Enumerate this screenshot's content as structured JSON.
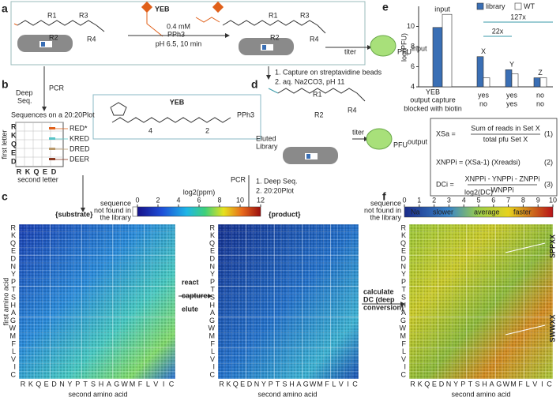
{
  "panel_labels": [
    "a",
    "b",
    "c",
    "d",
    "e",
    "f"
  ],
  "panel_a": {
    "r_groups": [
      "R1",
      "R2",
      "R3",
      "R4"
    ],
    "reagent": "YEB",
    "concentration": "0.4 mM",
    "conditions": "pH 6.5, 10 min",
    "ylide": "PPh3",
    "titer": "titer",
    "pfu": "PFU",
    "pfu_sup": "input"
  },
  "yeb_box": {
    "title": "YEB",
    "ylide": "PPh3",
    "n1": "4",
    "n2": "2"
  },
  "panel_b": {
    "steps": [
      "PCR",
      "Deep",
      "Seq."
    ],
    "plot_title": "Sequences on a 20:20Plot",
    "y_label": "first letter",
    "x_label": "second letter",
    "letters": [
      "R",
      "K",
      "Q",
      "E",
      "D"
    ],
    "examples": [
      {
        "text": "RED*",
        "color": "#e0601a"
      },
      {
        "text": "KRED",
        "color": "#58c4c8"
      },
      {
        "text": "DRED",
        "color": "#b8986a"
      },
      {
        "text": "DEER",
        "color": "#8a3a22"
      }
    ]
  },
  "panel_c": {
    "missing_note": [
      "sequence",
      "not found in",
      "the library"
    ],
    "colorbar_title": "log2(ppm)",
    "colorbar_ticks": [
      0,
      2,
      4,
      6,
      8,
      10,
      12
    ],
    "substrate": "{substrate}",
    "product": "{product}",
    "y_label": "first amino acid",
    "x_label": "second amino acid",
    "steps": [
      "react",
      "capture",
      "elute"
    ],
    "pcr": "PCR",
    "seq_steps": [
      "1. Deep Seq.",
      "2. 20:20Plot"
    ],
    "calc": [
      "calculate",
      "DC (deep",
      "conversion)"
    ]
  },
  "amino_acids": [
    "R",
    "K",
    "Q",
    "E",
    "D",
    "N",
    "Y",
    "P",
    "T",
    "S",
    "H",
    "A",
    "G",
    "W",
    "M",
    "F",
    "L",
    "V",
    "I",
    "C"
  ],
  "panel_d": {
    "steps": [
      "1. Capture on streptavidine beads",
      "2. aq. Na2CO3, pH 11"
    ],
    "titer": "titer",
    "pfu": "PFU",
    "pfu_sup": "output",
    "eluted": [
      "Eluted",
      "Library"
    ],
    "r_groups": [
      "R1",
      "R2",
      "R4"
    ]
  },
  "chart_data": {
    "type": "bar",
    "y_label": "log(PFU)",
    "categories": [
      "input",
      "X",
      "Y",
      "Z"
    ],
    "series": [
      {
        "name": "library",
        "color": "#3a6fb5",
        "values": [
          9.9,
          7.0,
          5.7,
          4.9
        ]
      },
      {
        "name": "WT",
        "color": "#ffffff",
        "values": [
          11.2,
          4.9,
          5.3,
          4.9
        ]
      }
    ],
    "ylim": [
      4,
      12
    ],
    "yticks": [
      4,
      6,
      8,
      10
    ],
    "legend": "top-right",
    "annotations": [
      "127x",
      "22x"
    ],
    "row_labels": [
      "YEB",
      "output capture",
      "blocked with biotin"
    ],
    "capture_row": [
      "yes",
      "yes",
      "no"
    ],
    "biotin_row": [
      "no",
      "yes",
      "no"
    ]
  },
  "equations": [
    {
      "lhs": "XSa =",
      "num": "Sum of reads in Set X",
      "den": "total pfu Set X",
      "no": "(1)"
    },
    {
      "lhs": "XNPPi = (XSa-1) (Xreadsi)",
      "no": "(2)"
    },
    {
      "lhs": "DCi =",
      "num": "XNPPi - YNPPi - ZNPPi",
      "den": "WNPPi",
      "no": "(3)"
    }
  ],
  "panel_f": {
    "colorbar_title": "log2(DC)",
    "colorbar_ticks": [
      0,
      1,
      2,
      3,
      4,
      5,
      6,
      7,
      8,
      9,
      10
    ],
    "scale_words": [
      "Na",
      "slower",
      "average",
      "faster"
    ],
    "missing_note": [
      "sequence",
      "not found in",
      "the library"
    ],
    "callouts": [
      "SPPXX",
      "SWWXX"
    ],
    "y_label": "first amino acid",
    "x_label": "second amino acid"
  }
}
